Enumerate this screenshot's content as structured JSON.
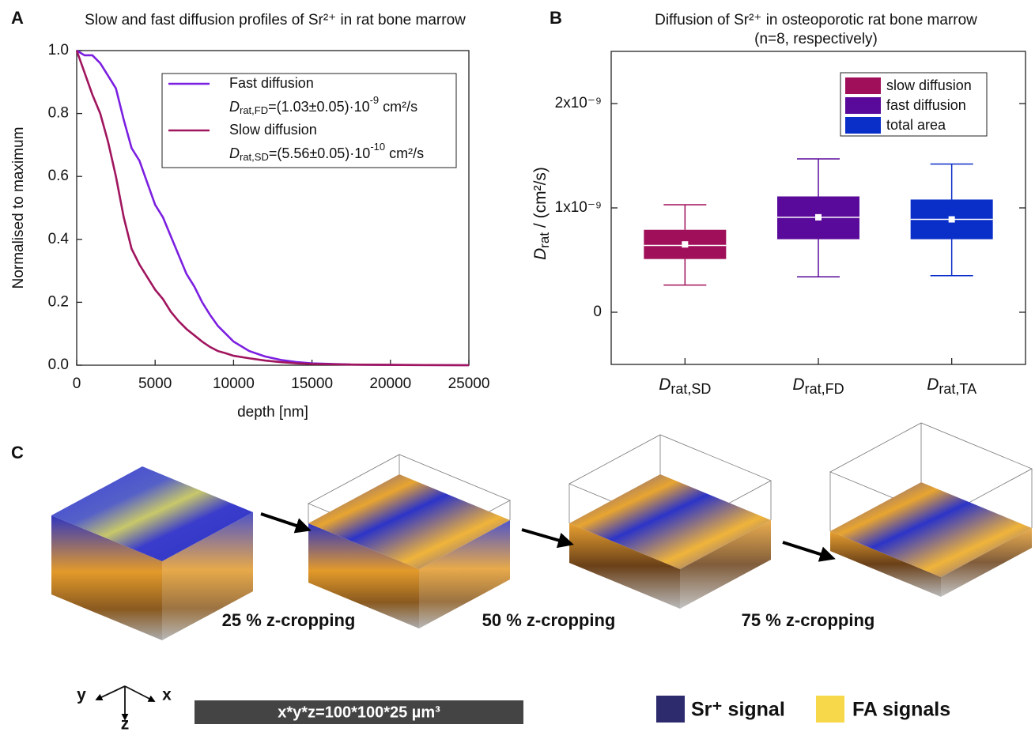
{
  "chart_data": [
    {
      "type": "line",
      "panel_label": "A",
      "title": "Slow and fast diffusion profiles of Sr²⁺ in rat bone marrow",
      "x_label": "depth [nm]",
      "y_label": "Normalised to maximum",
      "x": [
        0,
        500,
        1000,
        1500,
        2000,
        2500,
        3000,
        3500,
        4000,
        4500,
        5000,
        5500,
        6000,
        6500,
        7000,
        7500,
        8000,
        8500,
        9000,
        9500,
        10000,
        11000,
        12000,
        13000,
        14000,
        15000,
        17500,
        20000,
        25000
      ],
      "series": [
        {
          "name": "Fast diffusion",
          "color": "#7b1fe0",
          "annotation": {
            "symbol": "D",
            "sub": "rat,FD",
            "text": "=(1.03±0.05)·10",
            "sup": "-9",
            "unit": " cm²/s"
          },
          "values": [
            1.0,
            0.985,
            0.985,
            0.96,
            0.92,
            0.88,
            0.78,
            0.69,
            0.65,
            0.58,
            0.51,
            0.47,
            0.41,
            0.35,
            0.29,
            0.25,
            0.2,
            0.16,
            0.125,
            0.1,
            0.075,
            0.045,
            0.028,
            0.017,
            0.01,
            0.006,
            0.002,
            0.001,
            0.0
          ]
        },
        {
          "name": "Slow diffusion",
          "color": "#a0155e",
          "annotation": {
            "symbol": "D",
            "sub": "rat,SD",
            "text": "=(5.56±0.05)·10",
            "sup": "-10",
            "unit": " cm²/s"
          },
          "values": [
            1.0,
            0.93,
            0.86,
            0.8,
            0.71,
            0.6,
            0.47,
            0.37,
            0.32,
            0.28,
            0.24,
            0.21,
            0.17,
            0.14,
            0.115,
            0.095,
            0.075,
            0.058,
            0.045,
            0.038,
            0.03,
            0.022,
            0.015,
            0.01,
            0.006,
            0.004,
            0.002,
            0.001,
            0.0
          ]
        }
      ],
      "xlim": [
        0,
        25000
      ],
      "xticks": [
        0,
        5000,
        10000,
        15000,
        20000,
        25000
      ],
      "ylim": [
        0,
        1.0
      ],
      "yticks": [
        {
          "value": 0,
          "label": "0.0"
        },
        0.2,
        0.4,
        0.6,
        0.8,
        {
          "value": 1,
          "label": "1.0"
        }
      ],
      "legend": "upper right"
    },
    {
      "type": "box",
      "panel_label": "B",
      "title": "Diffusion of Sr²⁺ in osteoporotic rat bone marrow",
      "subtitle": "(n=8, respectively)",
      "y_label": "Drat / (cm²/s)",
      "categories": [
        "Drat,SD",
        "Drat,FD",
        "Drat,TA"
      ],
      "boxes": [
        {
          "name": "slow diffusion",
          "color": "#a0105a",
          "min": 2.6e-10,
          "q1": 5.1e-10,
          "median": 6.4e-10,
          "mean": 6.5e-10,
          "q3": 7.9e-10,
          "max": 1.03e-09
        },
        {
          "name": "fast diffusion",
          "color": "#5a0a9a",
          "min": 3.4e-10,
          "q1": 7e-10,
          "median": 9.1e-10,
          "mean": 9.1e-10,
          "q3": 1.11e-09,
          "max": 1.47e-09
        },
        {
          "name": "total area",
          "color": "#0a2ec8",
          "min": 3.5e-10,
          "q1": 7e-10,
          "median": 8.9e-10,
          "mean": 8.9e-10,
          "q3": 1.08e-09,
          "max": 1.42e-09
        }
      ],
      "ylim": [
        -5e-10,
        2.5e-09
      ],
      "yticks": [
        0,
        {
          "value": 1e-09,
          "label": "1x10⁻⁹"
        },
        {
          "value": 2e-09,
          "label": "2x10⁻⁹"
        }
      ],
      "legend": "upper right"
    }
  ],
  "panel_c": {
    "panel_label": "C",
    "croppings": [
      "25 % z-cropping",
      "50 % z-cropping",
      "75 % z-cropping"
    ],
    "axes": {
      "x": "x",
      "y": "y",
      "z": "z"
    },
    "scale_bar": "x*y*z=100*100*25 µm³",
    "legend": [
      "Sr⁺ signal",
      "FA signals"
    ]
  }
}
